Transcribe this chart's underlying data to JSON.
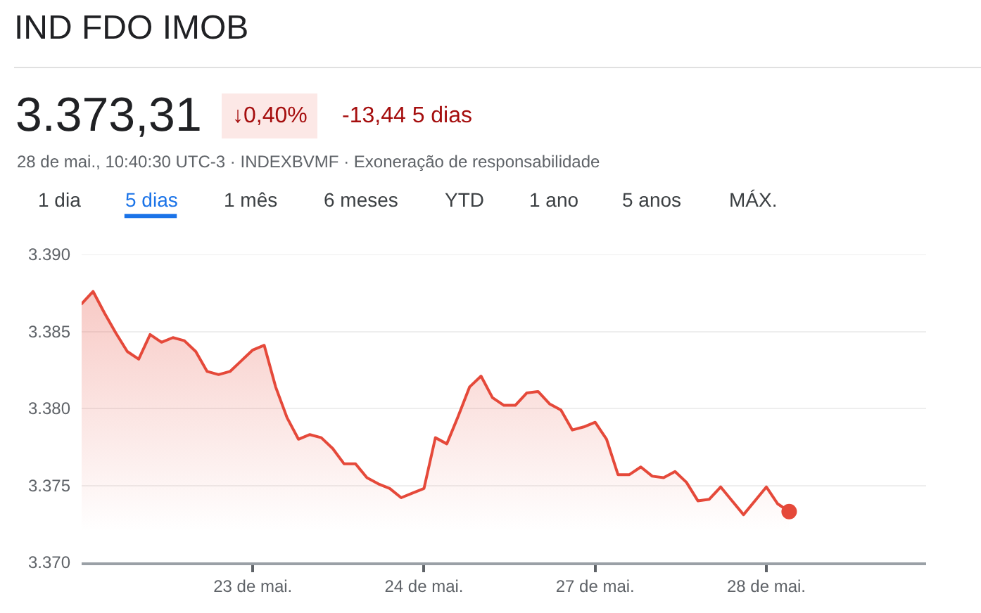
{
  "chart_data": {
    "type": "area",
    "title": "IND FDO IMOB",
    "subtitle": "28 de mai., 10:40:30 UTC-3 · INDEXBVMF · Exoneração de responsabilidade",
    "annotations": [
      "3.373,31",
      "↓0,40%",
      "-13,44 5 dias",
      "1 dia",
      "5 dias",
      "1 mês",
      "6 meses",
      "YTD",
      "1 ano",
      "5 anos",
      "MÁX."
    ],
    "categories": [
      null,
      null,
      null,
      null,
      null,
      null,
      null,
      null,
      null,
      null,
      null,
      null,
      null,
      null,
      null,
      "23 de mai.",
      null,
      null,
      null,
      null,
      null,
      null,
      null,
      null,
      null,
      null,
      null,
      null,
      null,
      null,
      "24 de mai.",
      null,
      null,
      null,
      null,
      null,
      null,
      null,
      null,
      null,
      null,
      null,
      null,
      null,
      null,
      "27 de mai.",
      null,
      null,
      null,
      null,
      null,
      null,
      null,
      null,
      null,
      null,
      null,
      null,
      null,
      null,
      "28 de mai.",
      null,
      null,
      null,
      null,
      null,
      null,
      null,
      null,
      null,
      null,
      null,
      null,
      null,
      null
    ],
    "series": [
      {
        "color": "#e5493a",
        "values": [
          3386.8,
          3387.6,
          3386.2,
          3384.9,
          3383.7,
          3383.2,
          3384.8,
          3384.3,
          3384.6,
          3384.4,
          3383.7,
          3382.4,
          3382.2,
          3382.4,
          3383.1,
          3383.8,
          3384.1,
          3381.4,
          3379.4,
          3378.0,
          3378.3,
          3378.1,
          3377.4,
          3376.4,
          3376.4,
          3375.5,
          3375.1,
          3374.8,
          3374.2,
          3374.5,
          3374.8,
          3378.1,
          3377.7,
          3379.5,
          3381.4,
          3382.1,
          3380.7,
          3380.2,
          3380.2,
          3381.0,
          3381.1,
          3380.3,
          3379.9,
          3378.6,
          3378.8,
          3379.1,
          3378.0,
          3375.7,
          3375.7,
          3376.2,
          3375.6,
          3375.5,
          3375.9,
          3375.2,
          3374.0,
          3374.1,
          3374.9,
          3374.0,
          3373.1,
          3374.0,
          3374.9,
          3373.8,
          3373.3,
          null,
          null,
          null,
          null,
          null,
          null,
          null,
          null,
          null,
          null,
          null,
          null
        ]
      },
      {
        "type": "scatter",
        "color": "#e5493a",
        "marker": "circle",
        "values": [
          null,
          null,
          null,
          null,
          null,
          null,
          null,
          null,
          null,
          null,
          null,
          null,
          null,
          null,
          null,
          null,
          null,
          null,
          null,
          null,
          null,
          null,
          null,
          null,
          null,
          null,
          null,
          null,
          null,
          null,
          null,
          null,
          null,
          null,
          null,
          null,
          null,
          null,
          null,
          null,
          null,
          null,
          null,
          null,
          null,
          null,
          null,
          null,
          null,
          null,
          null,
          null,
          null,
          null,
          null,
          null,
          null,
          null,
          null,
          null,
          null,
          null,
          3373.3,
          null,
          null,
          null,
          null,
          null,
          null,
          null,
          null,
          null,
          null,
          null,
          null
        ]
      }
    ],
    "ylim": [
      3370,
      3390
    ],
    "yticks": [
      {
        "value": 3370,
        "label": "3.370"
      },
      {
        "value": 3375,
        "label": "3.375"
      },
      {
        "value": 3380,
        "label": "3.380"
      },
      {
        "value": 3385,
        "label": "3.385"
      },
      {
        "value": 3390,
        "label": "3.390"
      }
    ],
    "grid": "y",
    "line_style": "solid"
  }
}
